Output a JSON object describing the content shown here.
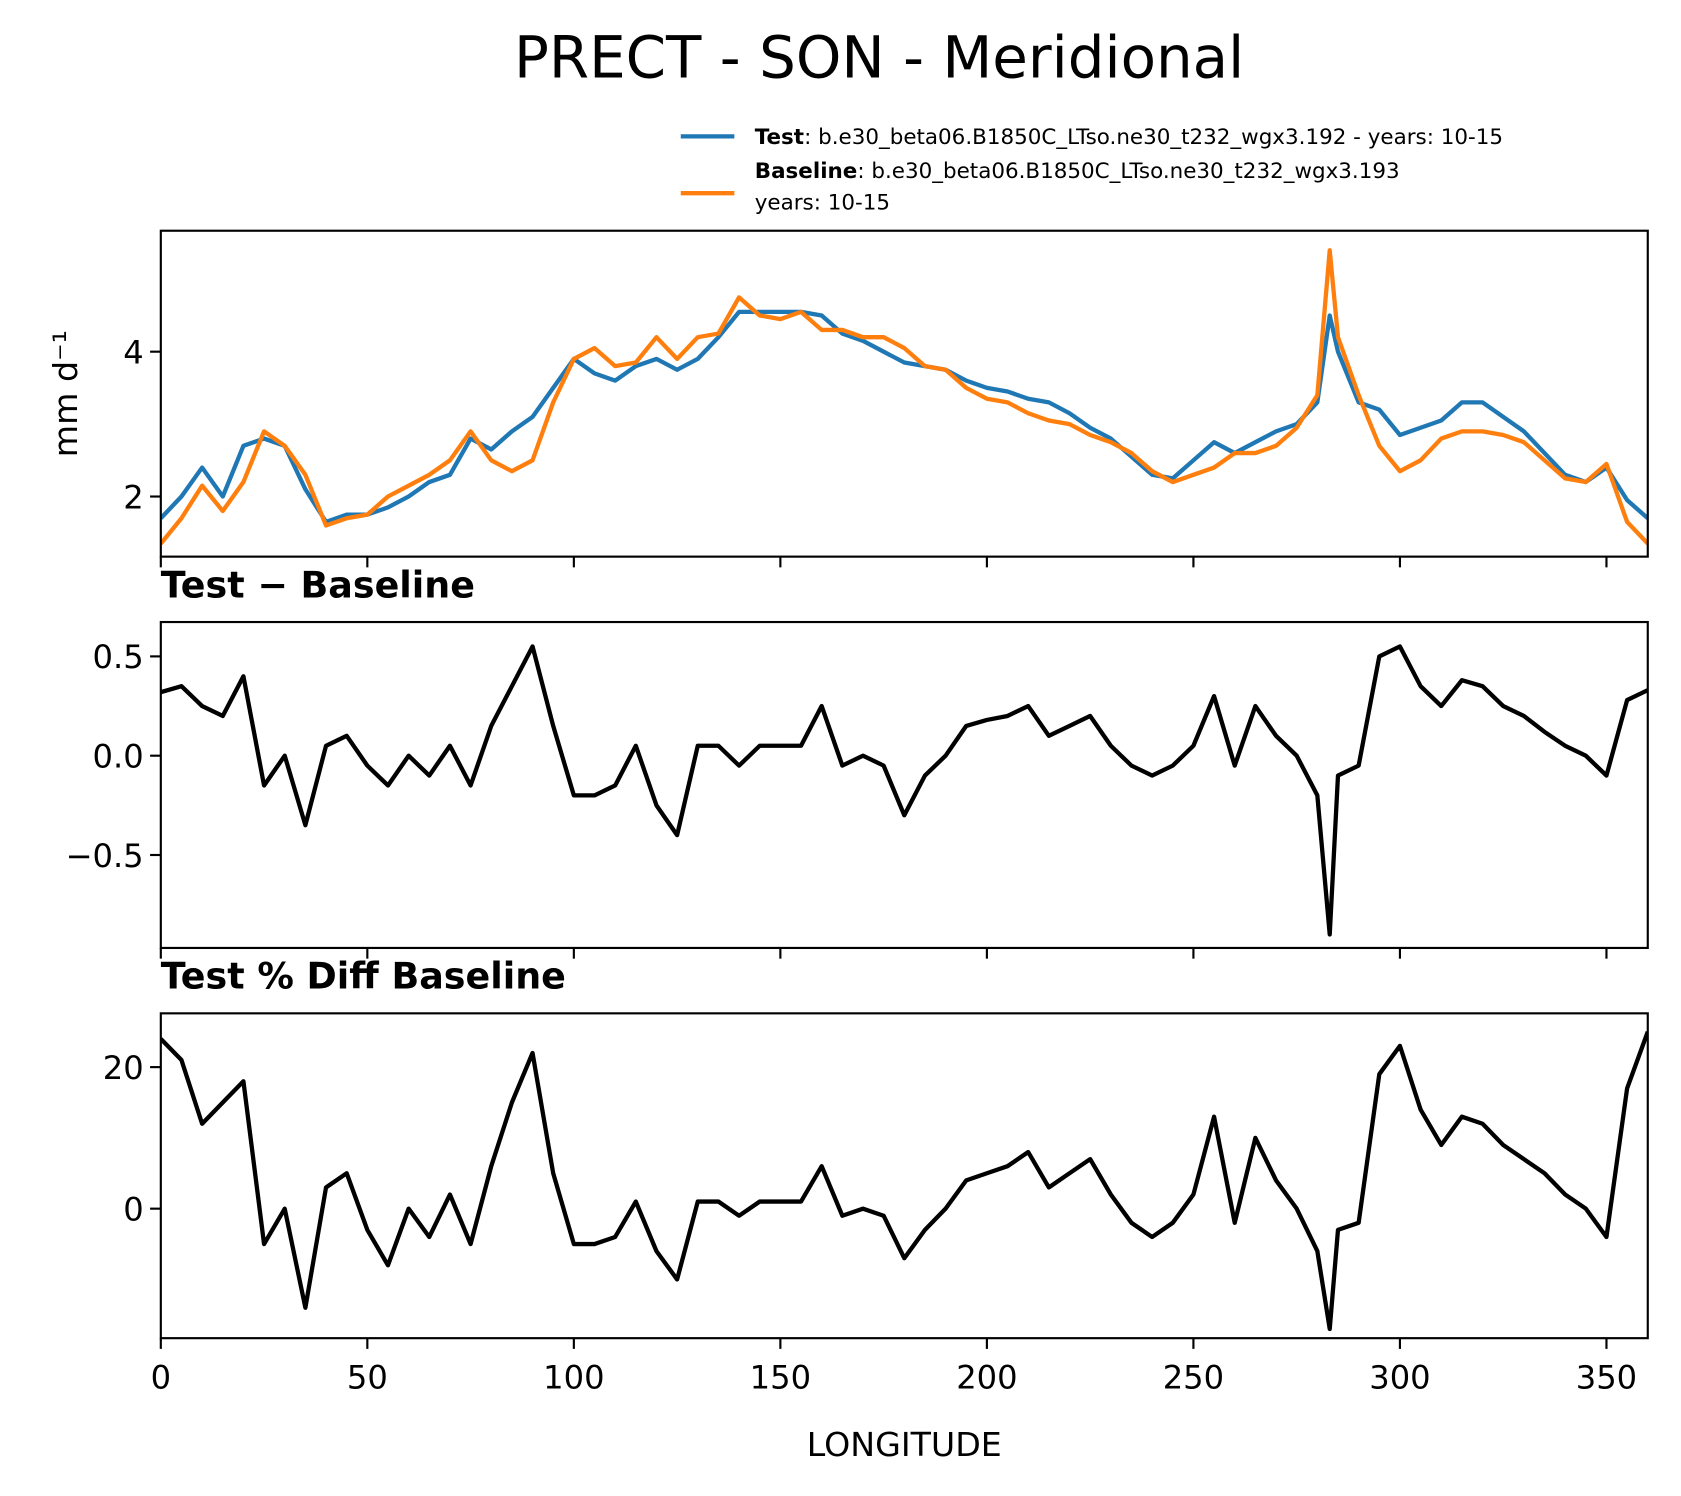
{
  "title": "PRECT - SON - Meridional",
  "chart_data": [
    {
      "type": "line",
      "ylabel": "mm d⁻¹",
      "x": [
        0,
        5,
        10,
        15,
        20,
        25,
        30,
        35,
        40,
        45,
        50,
        55,
        60,
        65,
        70,
        75,
        80,
        85,
        90,
        95,
        100,
        105,
        110,
        115,
        120,
        125,
        130,
        135,
        140,
        145,
        150,
        155,
        160,
        165,
        170,
        175,
        180,
        185,
        190,
        195,
        200,
        205,
        210,
        215,
        220,
        225,
        230,
        235,
        240,
        245,
        250,
        255,
        260,
        265,
        270,
        275,
        280,
        283,
        285,
        290,
        295,
        300,
        305,
        310,
        315,
        320,
        325,
        330,
        335,
        340,
        345,
        350,
        355,
        360
      ],
      "series": [
        {
          "name": "Test",
          "description": [
            ": b.e30_beta06.B1850C_LTso.ne30_t232_wgx3.192 - years: 10-15"
          ],
          "color": "#1f77b4",
          "values": [
            1.7,
            2.0,
            2.4,
            2.0,
            2.7,
            2.8,
            2.7,
            2.1,
            1.65,
            1.75,
            1.75,
            1.85,
            2.0,
            2.2,
            2.3,
            2.8,
            2.65,
            2.9,
            3.1,
            3.5,
            3.9,
            3.7,
            3.6,
            3.8,
            3.9,
            3.75,
            3.9,
            4.2,
            4.55,
            4.55,
            4.55,
            4.55,
            4.5,
            4.25,
            4.15,
            4.0,
            3.85,
            3.8,
            3.75,
            3.6,
            3.5,
            3.45,
            3.35,
            3.3,
            3.15,
            2.95,
            2.8,
            2.55,
            2.3,
            2.25,
            2.5,
            2.75,
            2.6,
            2.75,
            2.9,
            3.0,
            3.3,
            4.5,
            4.0,
            3.3,
            3.2,
            2.85,
            2.95,
            3.05,
            3.3,
            3.3,
            3.1,
            2.9,
            2.6,
            2.3,
            2.2,
            2.4,
            1.95,
            1.7
          ]
        },
        {
          "name": "Baseline",
          "description": [
            ": b.e30_beta06.B1850C_LTso.ne30_t232_wgx3.193",
            "years: 10-15"
          ],
          "color": "#ff7f0e",
          "values": [
            1.35,
            1.7,
            2.15,
            1.8,
            2.2,
            2.9,
            2.7,
            2.3,
            1.6,
            1.7,
            1.75,
            2.0,
            2.15,
            2.3,
            2.5,
            2.9,
            2.5,
            2.35,
            2.5,
            3.3,
            3.9,
            4.05,
            3.8,
            3.85,
            4.2,
            3.9,
            4.2,
            4.25,
            4.75,
            4.5,
            4.45,
            4.55,
            4.3,
            4.3,
            4.2,
            4.2,
            4.05,
            3.8,
            3.75,
            3.5,
            3.35,
            3.3,
            3.15,
            3.05,
            3.0,
            2.85,
            2.75,
            2.6,
            2.35,
            2.2,
            2.3,
            2.4,
            2.6,
            2.6,
            2.7,
            2.95,
            3.4,
            5.4,
            4.2,
            3.4,
            2.7,
            2.35,
            2.5,
            2.8,
            2.9,
            2.9,
            2.85,
            2.75,
            2.5,
            2.25,
            2.2,
            2.45,
            1.65,
            1.35
          ]
        }
      ],
      "xlim": [
        0,
        360
      ],
      "xticks": [
        0,
        50,
        100,
        150,
        200,
        250,
        300,
        350
      ],
      "xticklabels": false,
      "ylim": [
        1.17,
        5.67
      ],
      "yticks": [
        2,
        4
      ]
    },
    {
      "type": "line",
      "title": "Test − Baseline",
      "x": [
        0,
        5,
        10,
        15,
        20,
        25,
        30,
        35,
        40,
        45,
        50,
        55,
        60,
        65,
        70,
        75,
        80,
        85,
        90,
        95,
        100,
        105,
        110,
        115,
        120,
        125,
        130,
        135,
        140,
        145,
        150,
        155,
        160,
        165,
        170,
        175,
        180,
        185,
        190,
        195,
        200,
        205,
        210,
        215,
        220,
        225,
        230,
        235,
        240,
        245,
        250,
        255,
        260,
        265,
        270,
        275,
        280,
        283,
        285,
        290,
        295,
        300,
        305,
        310,
        315,
        320,
        325,
        330,
        335,
        340,
        345,
        350,
        355,
        360
      ],
      "series": [
        {
          "color": "#000000",
          "values": [
            0.32,
            0.35,
            0.25,
            0.2,
            0.4,
            -0.15,
            0.0,
            -0.35,
            0.05,
            0.1,
            -0.05,
            -0.15,
            0.0,
            -0.1,
            0.05,
            -0.15,
            0.15,
            0.35,
            0.55,
            0.15,
            -0.2,
            -0.2,
            -0.15,
            0.05,
            -0.25,
            -0.4,
            0.05,
            0.05,
            -0.05,
            0.05,
            0.05,
            0.05,
            0.25,
            -0.05,
            0.0,
            -0.05,
            -0.3,
            -0.1,
            0.0,
            0.15,
            0.18,
            0.2,
            0.25,
            0.1,
            0.15,
            0.2,
            0.05,
            -0.05,
            -0.1,
            -0.05,
            0.05,
            0.3,
            -0.05,
            0.25,
            0.1,
            0.0,
            -0.2,
            -0.9,
            -0.1,
            -0.05,
            0.5,
            0.55,
            0.35,
            0.25,
            0.38,
            0.35,
            0.25,
            0.2,
            0.12,
            0.05,
            0.0,
            -0.1,
            0.28,
            0.33
          ]
        }
      ],
      "xlim": [
        0,
        360
      ],
      "xticks": [
        0,
        50,
        100,
        150,
        200,
        250,
        300,
        350
      ],
      "xticklabels": false,
      "ylim": [
        -0.968,
        0.673
      ],
      "yticks": [
        {
          "value": 0.5,
          "label": "0.5"
        },
        {
          "value": 0,
          "label": "0.0"
        },
        {
          "value": -0.5,
          "label": "−0.5"
        }
      ]
    },
    {
      "type": "line",
      "title": "Test % Diff Baseline",
      "xlabel": "LONGITUDE",
      "x": [
        0,
        5,
        10,
        15,
        20,
        25,
        30,
        35,
        40,
        45,
        50,
        55,
        60,
        65,
        70,
        75,
        80,
        85,
        90,
        95,
        100,
        105,
        110,
        115,
        120,
        125,
        130,
        135,
        140,
        145,
        150,
        155,
        160,
        165,
        170,
        175,
        180,
        185,
        190,
        195,
        200,
        205,
        210,
        215,
        220,
        225,
        230,
        235,
        240,
        245,
        250,
        255,
        260,
        265,
        270,
        275,
        280,
        283,
        285,
        290,
        295,
        300,
        305,
        310,
        315,
        320,
        325,
        330,
        335,
        340,
        345,
        350,
        355,
        360
      ],
      "series": [
        {
          "color": "#000000",
          "values": [
            24,
            21,
            12,
            15,
            18,
            -5,
            0,
            -14,
            3,
            5,
            -3,
            -8,
            0,
            -4,
            2,
            -5,
            6,
            15,
            22,
            5,
            -5,
            -5,
            -4,
            1,
            -6,
            -10,
            1,
            1,
            -1,
            1,
            1,
            1,
            6,
            -1,
            0,
            -1,
            -7,
            -3,
            0,
            4,
            5,
            6,
            8,
            3,
            5,
            7,
            2,
            -2,
            -4,
            -2,
            2,
            13,
            -2,
            10,
            4,
            0,
            -6,
            -17,
            -3,
            -2,
            19,
            23,
            14,
            9,
            13,
            12,
            9,
            7,
            5,
            2,
            0,
            -4,
            17,
            25
          ]
        }
      ],
      "xlim": [
        0,
        360
      ],
      "xticks": [
        0,
        50,
        100,
        150,
        200,
        250,
        300,
        350
      ],
      "xticklabels": true,
      "ylim": [
        -18.3,
        27.6
      ],
      "yticks": [
        0,
        20
      ]
    }
  ]
}
